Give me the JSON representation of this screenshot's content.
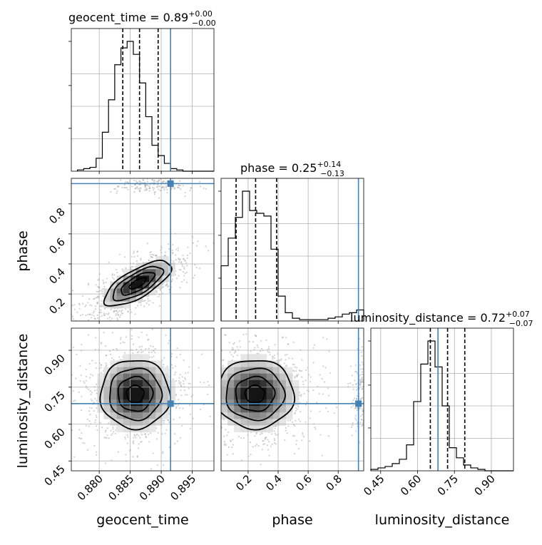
{
  "chart_data": {
    "type": "corner",
    "parameters": [
      "geocent_time",
      "phase",
      "luminosity_distance"
    ],
    "titles": {
      "geocent_time": {
        "name": "geocent_time",
        "median": "0.89",
        "plus": "+0.00",
        "minus": "−0.00"
      },
      "phase": {
        "name": "phase",
        "median": "0.25",
        "plus": "+0.14",
        "minus": "−0.13"
      },
      "luminosity_distance": {
        "name": "luminosity_distance",
        "median": "0.72",
        "plus": "+0.07",
        "minus": "−0.07"
      }
    },
    "axis_labels": {
      "geocent_time": "geocent_time",
      "phase": "phase",
      "luminosity_distance": "luminosity_distance"
    },
    "ranges": {
      "geocent_time": [
        0.8755,
        0.8985
      ],
      "phase": [
        0.02,
        0.97
      ],
      "luminosity_distance": [
        0.41,
        0.99
      ]
    },
    "ticks": {
      "geocent_time": [
        0.88,
        0.885,
        0.89,
        0.895
      ],
      "phase": [
        0.2,
        0.4,
        0.6,
        0.8
      ],
      "luminosity_distance": [
        0.45,
        0.6,
        0.75,
        0.9
      ]
    },
    "tick_labels": {
      "geocent_time": [
        "0.880",
        "0.885",
        "0.890",
        "0.895"
      ],
      "phase": [
        "0.2",
        "0.4",
        "0.6",
        "0.8"
      ],
      "luminosity_distance": [
        "0.45",
        "0.60",
        "0.75",
        "0.90"
      ]
    },
    "truths": {
      "geocent_time": 0.8915,
      "phase": 0.935,
      "luminosity_distance": 0.683
    },
    "quantiles": {
      "geocent_time": [
        0.8838,
        0.8865,
        0.8895
      ],
      "phase": [
        0.12,
        0.25,
        0.39
      ],
      "luminosity_distance": [
        0.652,
        0.722,
        0.792
      ]
    },
    "histograms": {
      "geocent_time": {
        "x_start": 0.8765,
        "bin_width": 0.001,
        "counts": [
          1,
          2,
          3,
          10,
          30,
          55,
          82,
          95,
          100,
          90,
          68,
          42,
          20,
          12,
          6,
          2,
          1,
          0,
          0,
          0,
          0
        ]
      },
      "phase": {
        "x_start": 0.02,
        "bin_width": 0.0475,
        "counts": [
          40,
          60,
          75,
          94,
          80,
          78,
          76,
          52,
          18,
          6,
          2,
          1,
          1,
          1,
          1,
          2,
          3,
          5,
          6,
          8
        ]
      },
      "luminosity_distance": {
        "x_start": 0.41,
        "bin_width": 0.029,
        "counts": [
          1,
          2,
          3,
          5,
          8,
          18,
          48,
          74,
          90,
          72,
          45,
          16,
          9,
          4,
          2,
          1,
          0,
          0,
          0,
          0
        ]
      }
    },
    "grid": true
  }
}
